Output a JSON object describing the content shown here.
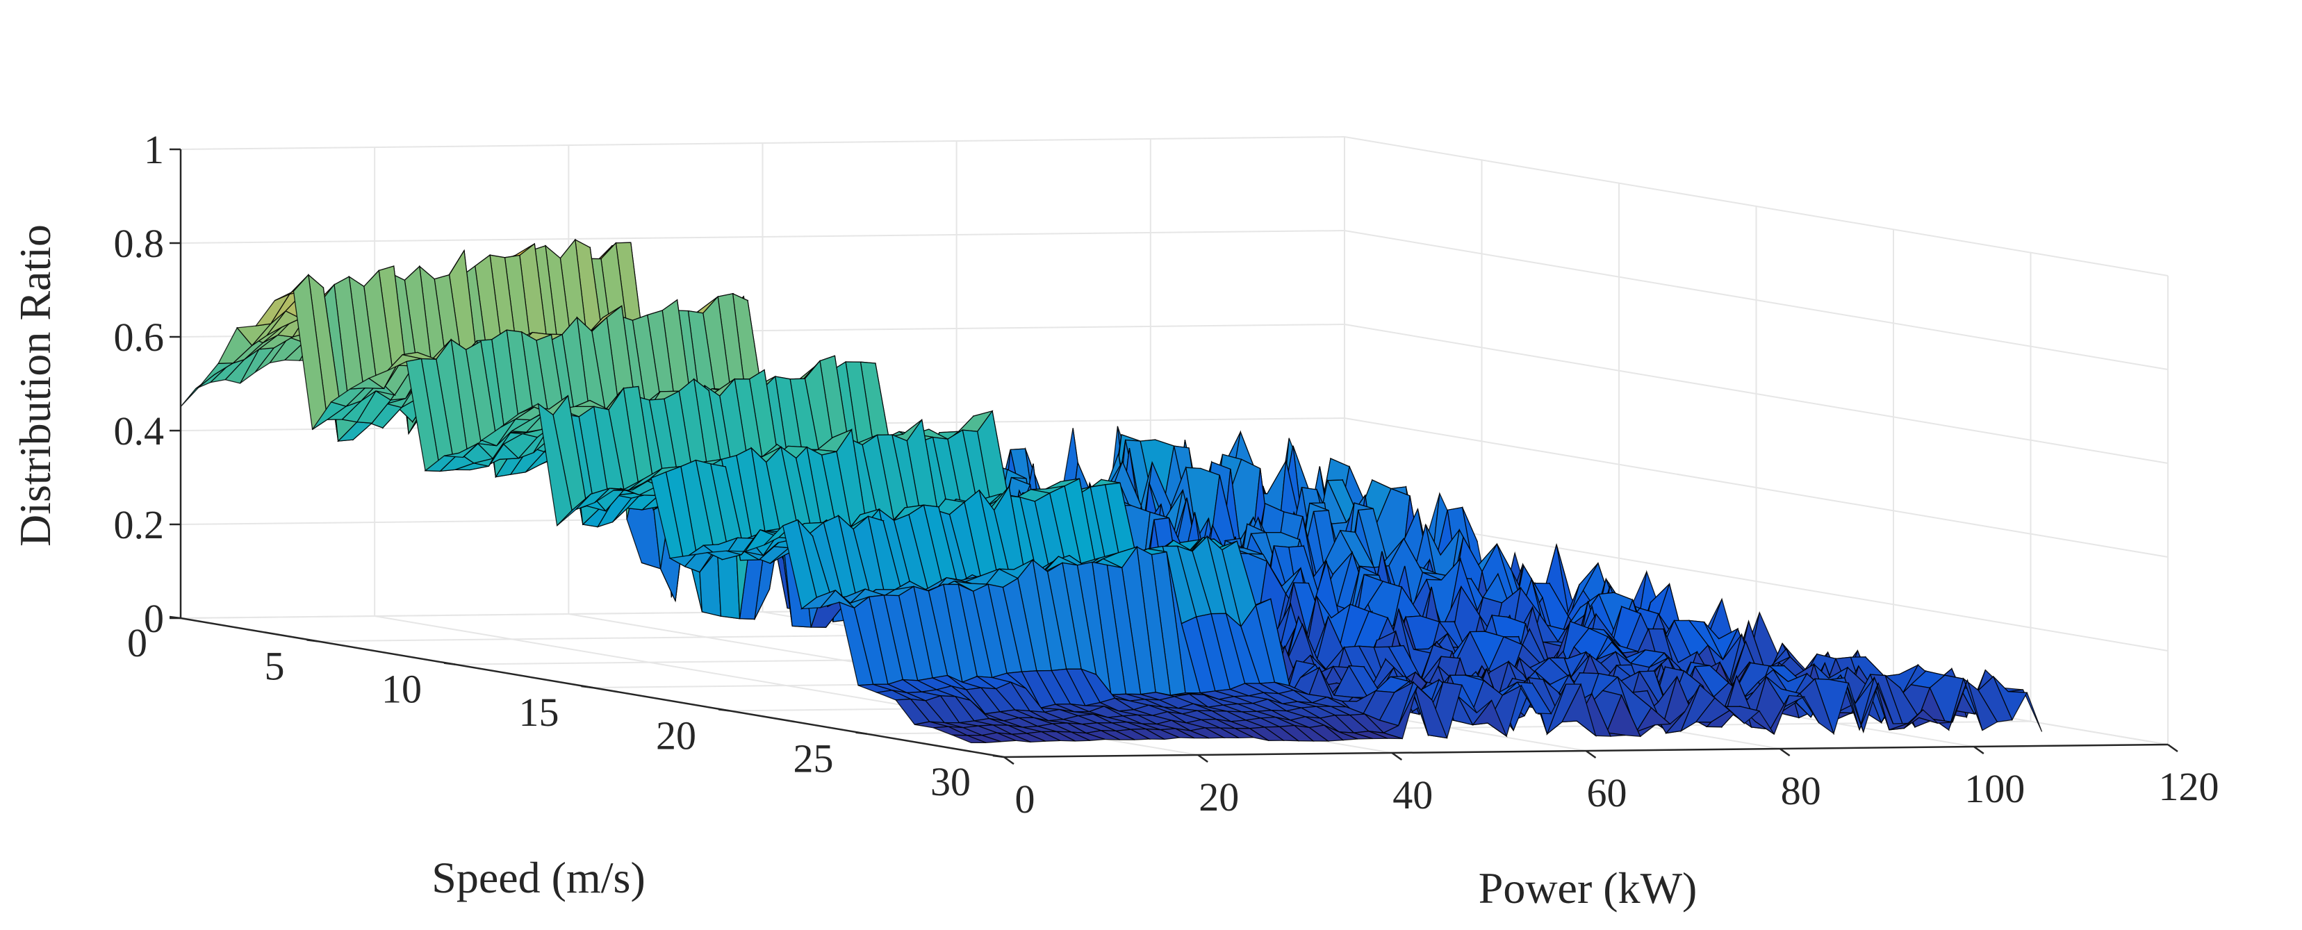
{
  "chart_data": {
    "type": "surface",
    "title": "",
    "xlabel": "Power (kW)",
    "ylabel": "Speed (m/s)",
    "zlabel": "Distribution Ratio",
    "x_ticks": [
      "0",
      "20",
      "40",
      "60",
      "80",
      "100",
      "120"
    ],
    "y_ticks": [
      "0",
      "5",
      "10",
      "15",
      "20",
      "25",
      "30"
    ],
    "z_ticks": [
      "0",
      "0.2",
      "0.4",
      "0.6",
      "0.8",
      "1"
    ],
    "xlim": [
      0,
      120
    ],
    "ylim": [
      0,
      30
    ],
    "zlim": [
      0,
      1
    ],
    "grid": true,
    "colormap": [
      "#352a87",
      "#0f5cdd",
      "#1481d6",
      "#06a4ca",
      "#2eb7a4",
      "#87bf77",
      "#d1bb59",
      "#fec832",
      "#f9fb0e"
    ],
    "surface_profile": {
      "low_power_plateau_ratio": 0.82,
      "plateau_power_limit_kW": 45,
      "high_power_layers": [
        {
          "ratio": 0.4
        },
        {
          "ratio": 0.3
        },
        {
          "ratio": 0.2
        },
        {
          "ratio": 0.1
        },
        {
          "ratio": 0.02
        }
      ]
    }
  }
}
